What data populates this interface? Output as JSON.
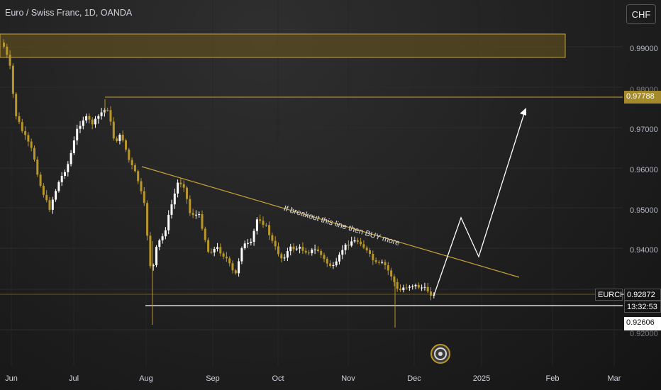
{
  "header": {
    "symbol_title": "Euro / Swiss Franc, 1D, OANDA",
    "currency_button": "CHF"
  },
  "price_axis": {
    "ticks": [
      "0.99000",
      "0.98000",
      "0.97000",
      "0.96000",
      "0.95000",
      "0.94000",
      "0.92000"
    ]
  },
  "time_axis": {
    "labels": [
      "Jun",
      "Jul",
      "Aug",
      "Sep",
      "Oct",
      "Nov",
      "Dec",
      "2025",
      "Feb",
      "Mar"
    ]
  },
  "price_tags": {
    "resistance": "0.97788",
    "symbol": "EURCHF",
    "current": "0.92872",
    "countdown": "13:32:53",
    "support": "0.92606"
  },
  "annotation": {
    "text": "If breakout this line then BUY more"
  },
  "colors": {
    "background": "#202020",
    "up_candle": "#ffffff",
    "down_candle": "#b8962a",
    "zone": "#6b5a1f",
    "resistance_line": "#c9a23a",
    "support_line": "#ffffff",
    "trendline": "#c9a23a"
  }
}
